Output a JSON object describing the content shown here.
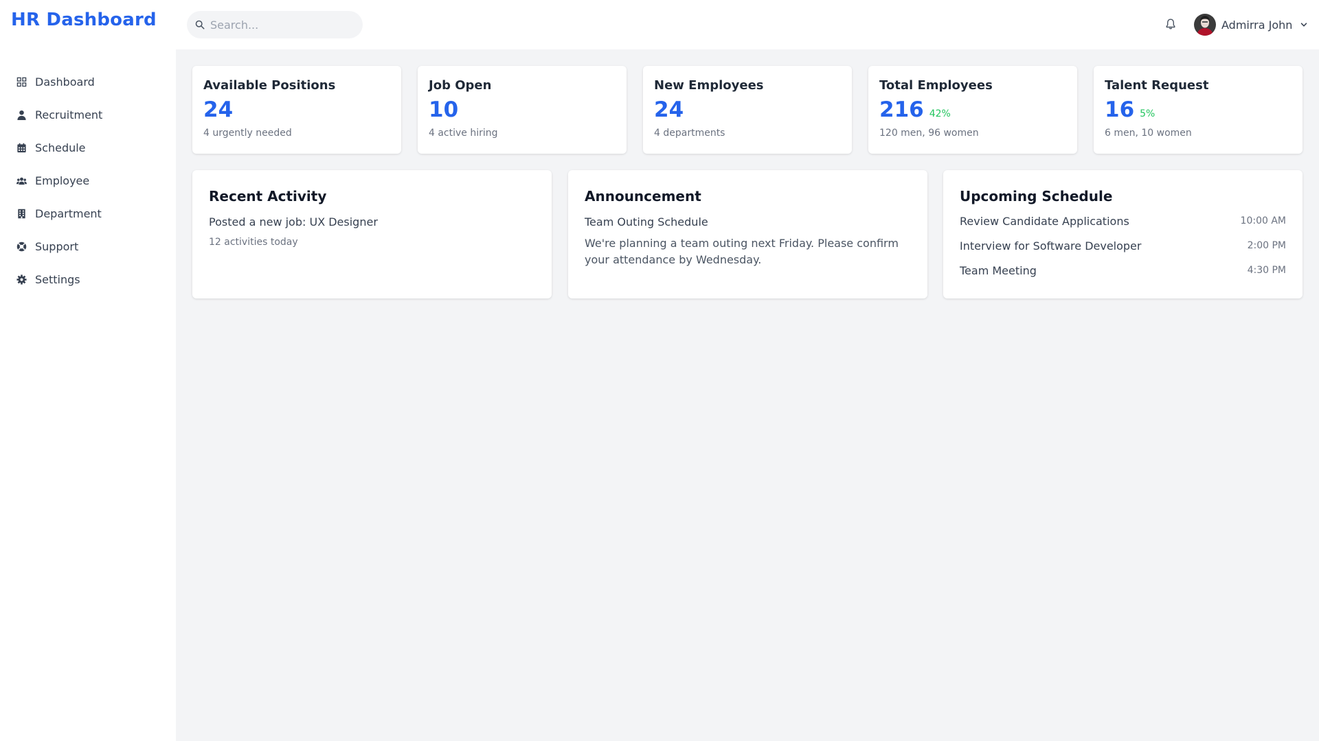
{
  "app": {
    "title": "HR Dashboard"
  },
  "search": {
    "placeholder": "Search..."
  },
  "user": {
    "name": "Admirra John"
  },
  "sidebar": {
    "items": [
      {
        "label": "Dashboard",
        "icon": "dashboard-icon"
      },
      {
        "label": "Recruitment",
        "icon": "user-icon"
      },
      {
        "label": "Schedule",
        "icon": "calendar-icon"
      },
      {
        "label": "Employee",
        "icon": "users-icon"
      },
      {
        "label": "Department",
        "icon": "building-icon"
      },
      {
        "label": "Support",
        "icon": "lifebuoy-icon"
      },
      {
        "label": "Settings",
        "icon": "gear-icon"
      }
    ]
  },
  "stats": [
    {
      "title": "Available Positions",
      "value": "24",
      "pct": "",
      "sub": "4 urgently needed"
    },
    {
      "title": "Job Open",
      "value": "10",
      "pct": "",
      "sub": "4 active hiring"
    },
    {
      "title": "New Employees",
      "value": "24",
      "pct": "",
      "sub": "4 departments"
    },
    {
      "title": "Total Employees",
      "value": "216",
      "pct": "42%",
      "sub": "120 men, 96 women"
    },
    {
      "title": "Talent Request",
      "value": "16",
      "pct": "5%",
      "sub": "6 men, 10 women"
    }
  ],
  "activity": {
    "title": "Recent Activity",
    "item": "Posted a new job: UX Designer",
    "summary": "12 activities today"
  },
  "announcement": {
    "title": "Announcement",
    "subject": "Team Outing Schedule",
    "body": "We're planning a team outing next Friday. Please confirm your attendance by Wednesday."
  },
  "schedule": {
    "title": "Upcoming Schedule",
    "items": [
      {
        "name": "Review Candidate Applications",
        "time": "10:00 AM"
      },
      {
        "name": "Interview for Software Developer",
        "time": "2:00 PM"
      },
      {
        "name": "Team Meeting",
        "time": "4:30 PM"
      }
    ]
  },
  "colors": {
    "accent": "#2563eb",
    "positive": "#22c55e",
    "background": "#f3f4f6"
  }
}
